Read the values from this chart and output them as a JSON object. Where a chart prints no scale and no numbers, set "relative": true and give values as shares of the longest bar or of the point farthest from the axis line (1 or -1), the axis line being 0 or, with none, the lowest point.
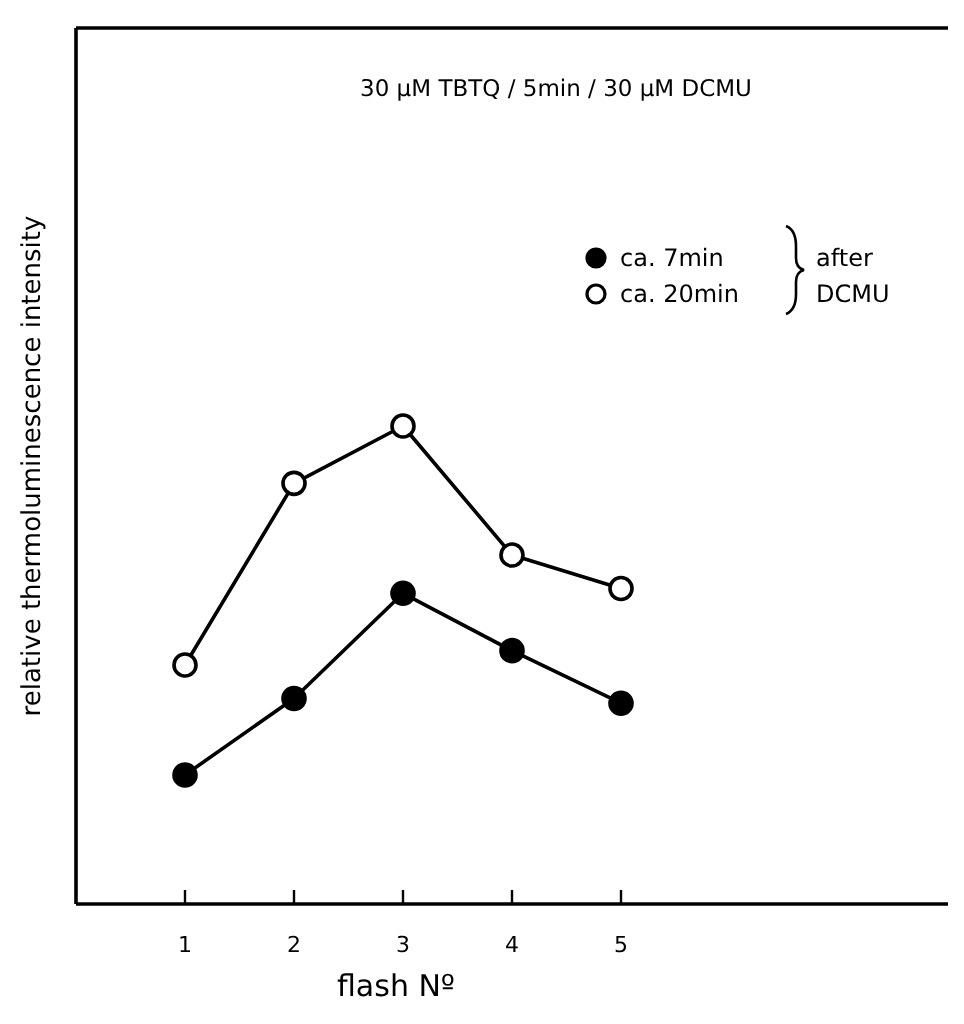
{
  "chart_data": {
    "type": "line",
    "title": "30 µM  TBTQ / 5min / 30 µM  DCMU",
    "xlabel": "flash Nº",
    "ylabel": "relative  thermoluminescence  intensity",
    "x": [
      1,
      2,
      3,
      4,
      5
    ],
    "xlim": [
      0,
      8
    ],
    "xticks": [
      1,
      2,
      3,
      4,
      5
    ],
    "relative": true,
    "marker": "circle",
    "line_style": "solid",
    "legend": "top right",
    "grid": false,
    "series": [
      {
        "name": "ca. 7min",
        "color": "#000000",
        "values": [
          0.27,
          0.43,
          0.65,
          0.53,
          0.42
        ]
      },
      {
        "name": "ca. 20min",
        "color": "#000000",
        "values": [
          0.5,
          0.88,
          1,
          0.73,
          0.66
        ]
      }
    ],
    "annotations": [
      "after DCMU"
    ]
  }
}
